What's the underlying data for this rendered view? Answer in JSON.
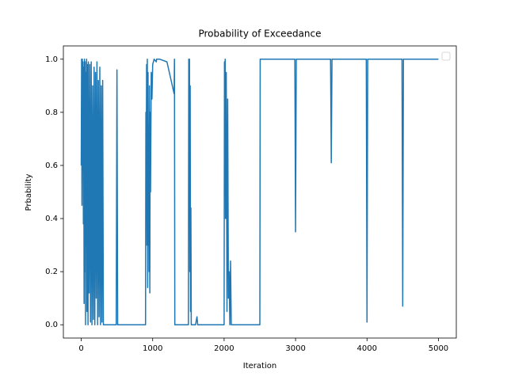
{
  "chart_data": {
    "type": "line",
    "title": "Probability of Exceedance",
    "x_label": "Iteration",
    "y_label": "Prbability",
    "color": "#1f77b4",
    "legend": "upper right",
    "xlim": [
      -250,
      5250
    ],
    "xticks": [
      0,
      1000,
      2000,
      3000,
      4000,
      5000
    ],
    "ylim": [
      -0.05,
      1.05
    ],
    "yticks": [
      {
        "value": 0,
        "label": "0.0"
      },
      0.2,
      0.4,
      0.6,
      0.8,
      {
        "value": 1,
        "label": "1.0"
      }
    ],
    "x": [
      0,
      5,
      10,
      15,
      20,
      25,
      30,
      35,
      40,
      45,
      50,
      55,
      60,
      65,
      70,
      75,
      80,
      85,
      90,
      95,
      100,
      110,
      120,
      130,
      140,
      150,
      160,
      170,
      180,
      190,
      200,
      210,
      220,
      230,
      240,
      250,
      260,
      270,
      280,
      290,
      300,
      310,
      490,
      500,
      510,
      900,
      905,
      910,
      915,
      920,
      925,
      930,
      935,
      940,
      945,
      950,
      955,
      960,
      965,
      970,
      980,
      990,
      1000,
      1010,
      1020,
      1050,
      1055,
      1060,
      1100,
      1200,
      1300,
      1305,
      1310,
      1500,
      1505,
      1510,
      1515,
      1520,
      1525,
      1530,
      1535,
      1540,
      1550,
      1560,
      1600,
      1620,
      1630,
      1640,
      2000,
      2005,
      2010,
      2015,
      2020,
      2030,
      2040,
      2050,
      2060,
      2070,
      2080,
      2090,
      2100,
      2110,
      2500,
      2505,
      2990,
      3000,
      3010,
      3490,
      3500,
      3510,
      3990,
      4000,
      4010,
      4490,
      4500,
      4510,
      5000
    ],
    "values": [
      0.6,
      1.0,
      0.45,
      1.0,
      0.58,
      0.99,
      0.38,
      0.97,
      0.08,
      1.0,
      0.2,
      0.99,
      0.0,
      0.95,
      0.3,
      1.0,
      0.05,
      0.98,
      0.5,
      0.0,
      0.99,
      0.12,
      0.98,
      0.01,
      0.99,
      0.0,
      0.9,
      0.02,
      0.97,
      0.0,
      0.95,
      0.1,
      0.99,
      0.0,
      0.92,
      0.03,
      0.97,
      0.0,
      0.9,
      0.01,
      0.92,
      0.0,
      0,
      0.96,
      0,
      0,
      0.8,
      0.6,
      0.98,
      0.3,
      1.0,
      0.14,
      0.95,
      0.3,
      0.75,
      0.2,
      0.9,
      0.12,
      0.8,
      0.5,
      0.95,
      0.85,
      0.98,
      0.99,
      1.0,
      0.99,
      1.0,
      1.0,
      1.0,
      0.99,
      0.87,
      1.0,
      0,
      0,
      1.0,
      0.5,
      1.0,
      0.2,
      0.9,
      0.05,
      0.44,
      0.0,
      0.0,
      0,
      0,
      0.03,
      0,
      0,
      0,
      0.99,
      0.8,
      1.0,
      0.4,
      0.95,
      0.05,
      0.85,
      0.1,
      0.2,
      0.0,
      0.24,
      0.0,
      0,
      0,
      1.0,
      1,
      0.35,
      1,
      1,
      0.61,
      1,
      1,
      0.01,
      1,
      1,
      0.07,
      1,
      1
    ]
  }
}
